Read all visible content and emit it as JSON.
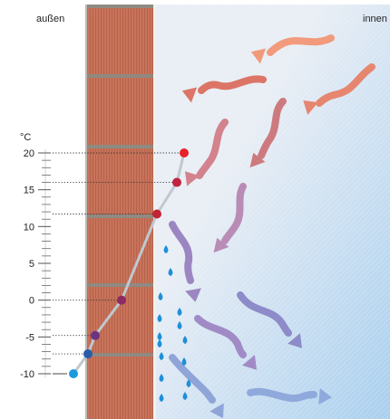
{
  "labels": {
    "outside": "außen",
    "inside": "innen",
    "unit": "°C"
  },
  "scale": {
    "min": -10,
    "max": 20,
    "ticks": [
      20,
      15,
      10,
      5,
      0,
      -5,
      -10
    ]
  },
  "profile": {
    "points": [
      20,
      16,
      11.7,
      0,
      -4.8,
      -7.3,
      -10
    ],
    "colors": [
      "#e8202a",
      "#c0223f",
      "#c32433",
      "#8c2a63",
      "#6a3483",
      "#2a5ca8",
      "#1a9be0"
    ]
  },
  "colors": {
    "brick": "#c8735a",
    "mortar": "#8f8a82",
    "inside_bg": "#e9eef5",
    "cold_blue": "#a9cfee",
    "guide_line": "#bfc8d0",
    "drop": "#1e8fd8"
  },
  "arrows": [
    {
      "color": "#f29a7c"
    },
    {
      "color": "#e6866f"
    },
    {
      "color": "#dc7567"
    },
    {
      "color": "#cd7a7e"
    },
    {
      "color": "#d2838d"
    },
    {
      "color": "#b98cb5"
    },
    {
      "color": "#9b86c2"
    },
    {
      "color": "#8d8bc9"
    },
    {
      "color": "#a18bc6"
    },
    {
      "color": "#8fa5d8"
    },
    {
      "color": "#90a9dc"
    },
    {
      "color": "#6fa4de"
    },
    {
      "color": "#79b0e3"
    }
  ]
}
